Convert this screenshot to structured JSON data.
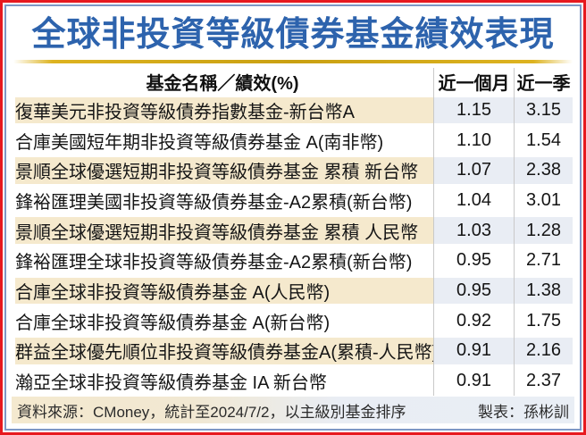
{
  "title": "全球非投資等級債券基金績效表現",
  "footer": {
    "source": "資料來源：CMoney，統計至2024/7/2，以主級別基金排序",
    "credit": "製表：孫彬訓"
  },
  "colors": {
    "outer_border_red": "#e7191f",
    "inner_border_blue": "#7e98c6",
    "title_blue": "#2d63ad",
    "gold_rule": "#ddb320",
    "highlight_name_cream": "#f5e9cd",
    "highlight_value_blue": "#e9edf4",
    "divider_gray": "#c9c9c9"
  },
  "chart_data": {
    "type": "table",
    "title": "全球非投資等級債券基金績效表現",
    "columns": [
      "基金名稱／績效(%)",
      "近一個月",
      "近一季"
    ],
    "rows": [
      {
        "name": "復華美元非投資等級債券指數基金-新台幣A",
        "month": "1.15",
        "quarter": "3.15",
        "highlighted": true
      },
      {
        "name": "合庫美國短年期非投資等級債券基金 A(南非幣)",
        "month": "1.10",
        "quarter": "1.54",
        "highlighted": false
      },
      {
        "name": "景順全球優選短期非投資等級債券基金 累積 新台幣",
        "month": "1.07",
        "quarter": "2.38",
        "highlighted": true
      },
      {
        "name": "鋒裕匯理美國非投資等級債券基金-A2累積(新台幣)",
        "month": "1.04",
        "quarter": "3.01",
        "highlighted": false
      },
      {
        "name": "景順全球優選短期非投資等級債券基金 累積 人民幣",
        "month": "1.03",
        "quarter": "1.28",
        "highlighted": true
      },
      {
        "name": "鋒裕匯理全球非投資等級債券基金-A2累積(新台幣)",
        "month": "0.95",
        "quarter": "2.71",
        "highlighted": false
      },
      {
        "name": "合庫全球非投資等級債券基金 A(人民幣)",
        "month": "0.95",
        "quarter": "1.38",
        "highlighted": true
      },
      {
        "name": "合庫全球非投資等級債券基金 A(新台幣)",
        "month": "0.92",
        "quarter": "1.75",
        "highlighted": false
      },
      {
        "name": "群益全球優先順位非投資等級債券基金A(累積-人民幣)",
        "month": "0.91",
        "quarter": "2.16",
        "highlighted": true
      },
      {
        "name": "瀚亞全球非投資等級債券基金 IA 新台幣",
        "month": "0.91",
        "quarter": "2.37",
        "highlighted": false
      }
    ]
  }
}
